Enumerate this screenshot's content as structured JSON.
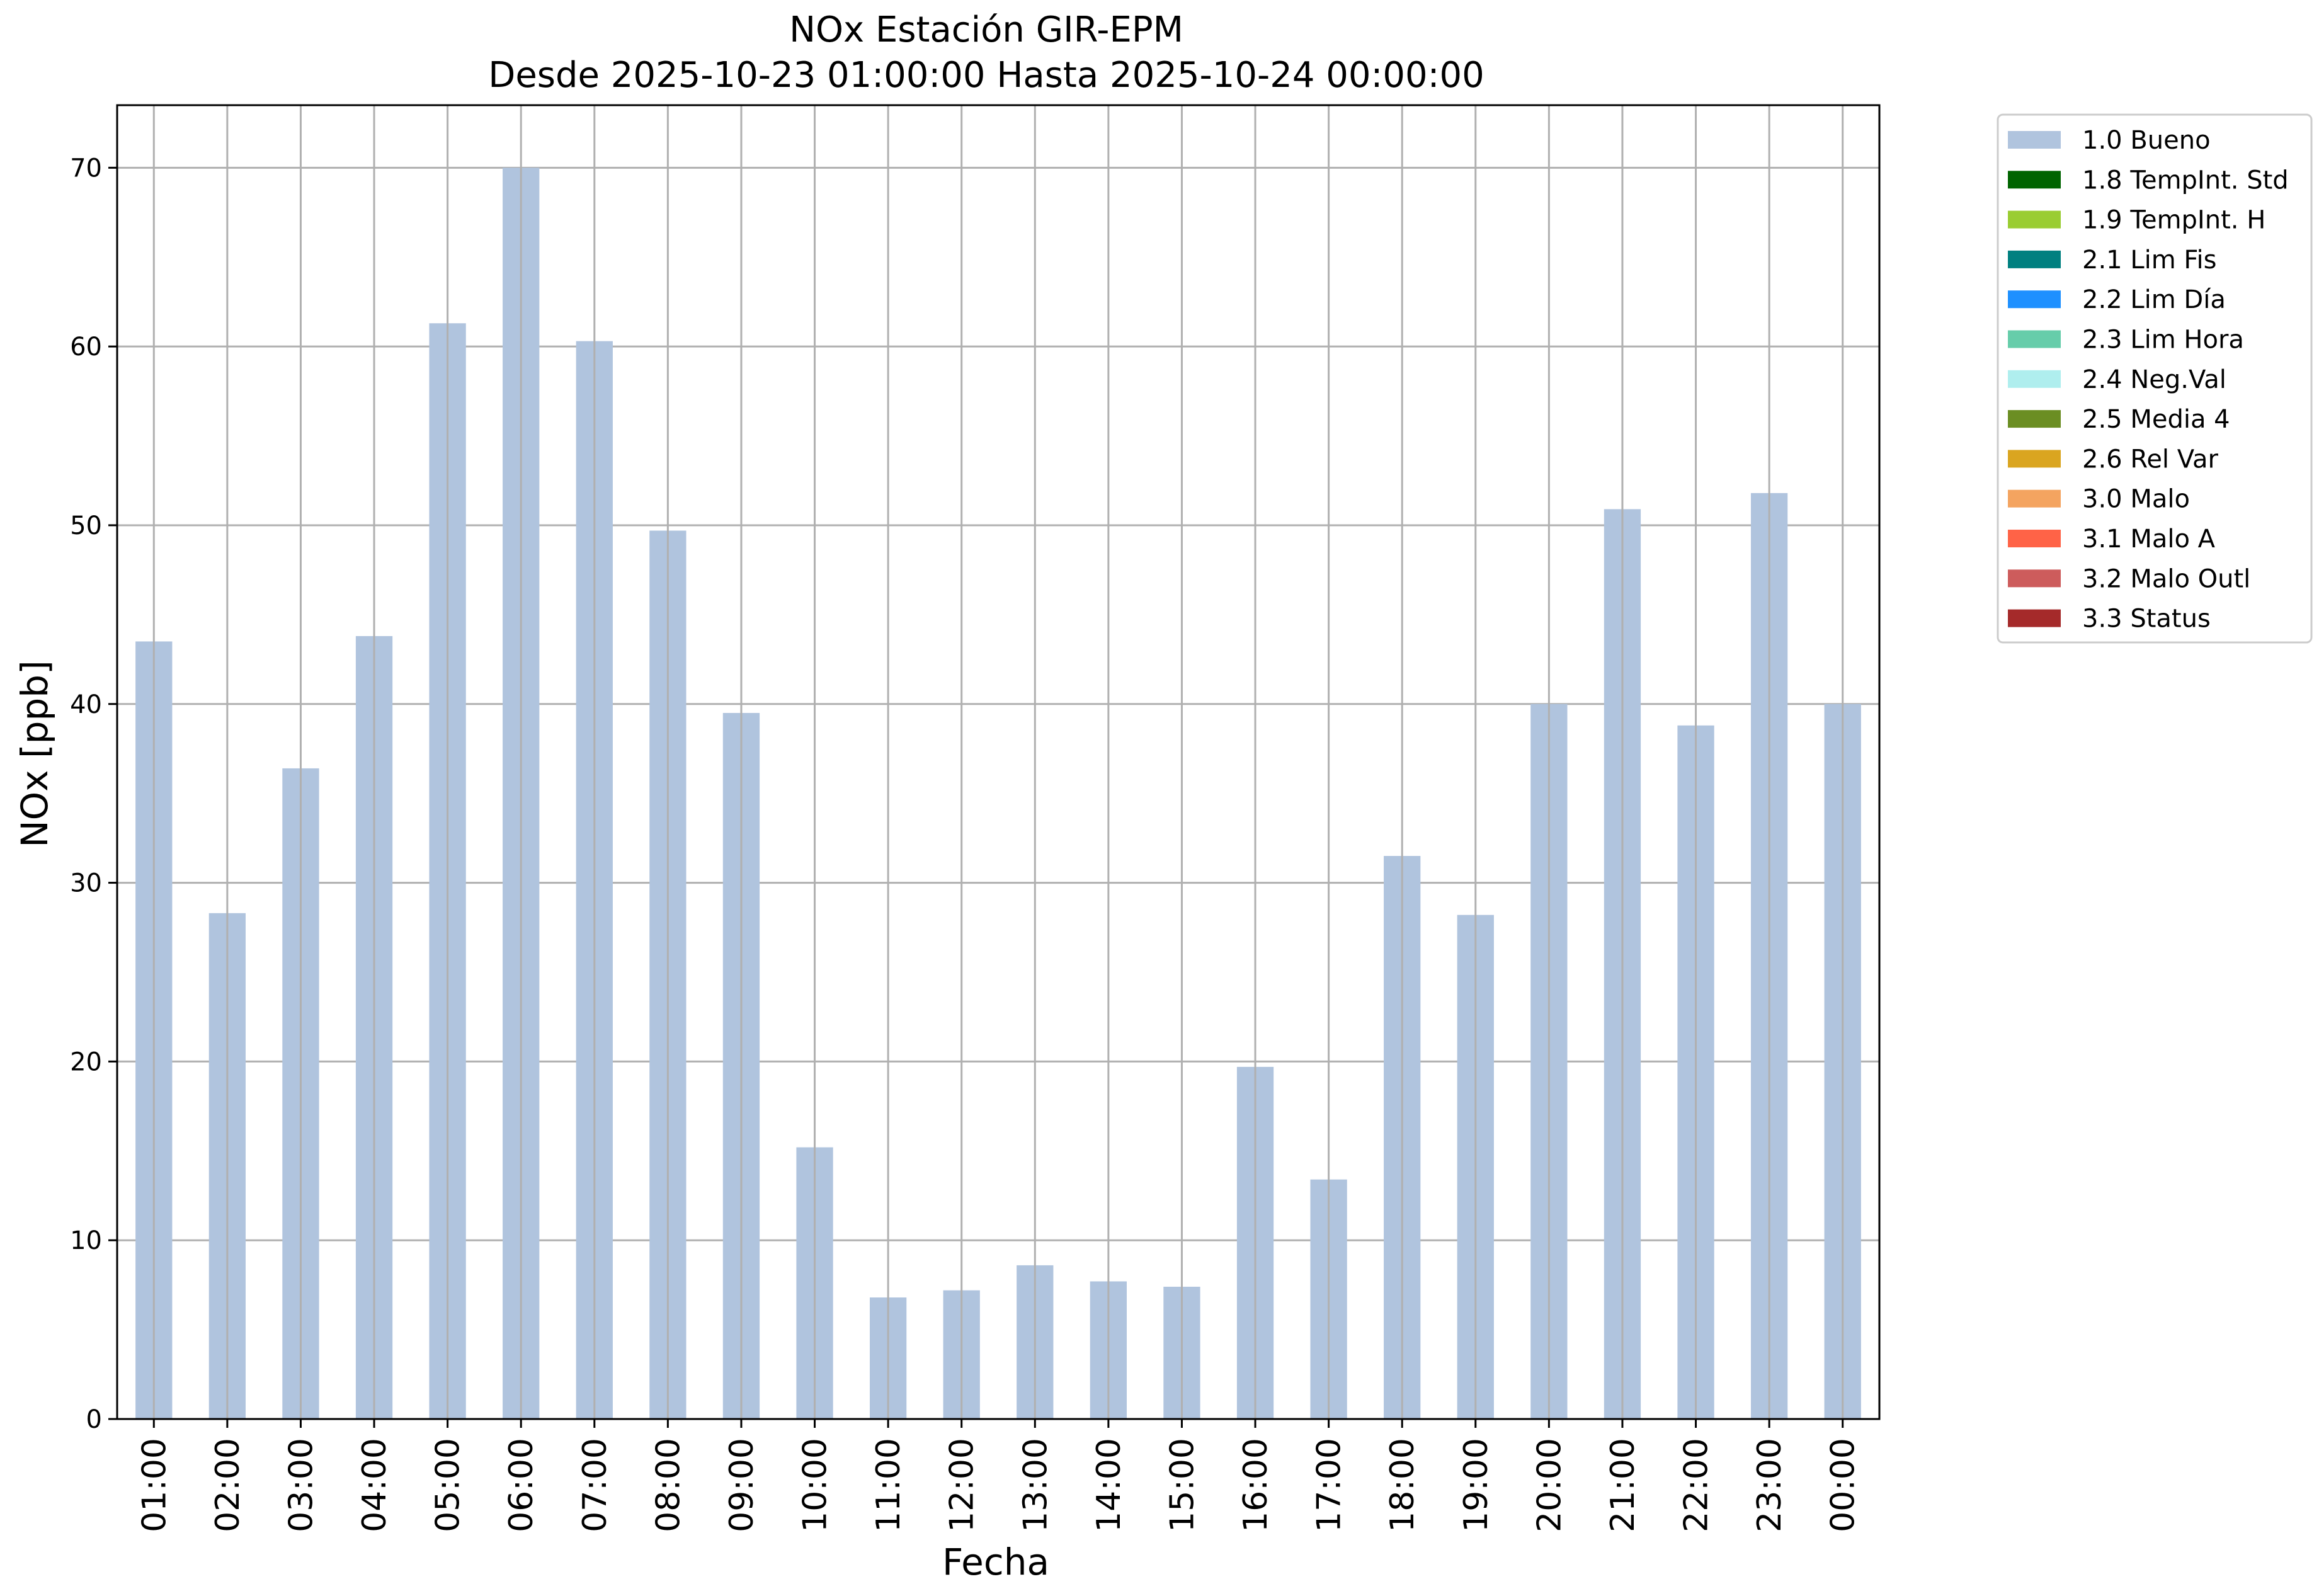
{
  "chart_data": {
    "type": "bar",
    "title_line1": "NOx Estación GIR-EPM",
    "title_line2": "Desde 2025-10-23 01:00:00 Hasta 2025-10-24 00:00:00",
    "xlabel": "Fecha",
    "ylabel": "NOx [ppb]",
    "ylim": [
      0,
      73.5
    ],
    "yticks": [
      0,
      10,
      20,
      30,
      40,
      50,
      60,
      70
    ],
    "grid": true,
    "legend_position": "outside-top-right",
    "categories": [
      "01:00",
      "02:00",
      "03:00",
      "04:00",
      "05:00",
      "06:00",
      "07:00",
      "08:00",
      "09:00",
      "10:00",
      "11:00",
      "12:00",
      "13:00",
      "14:00",
      "15:00",
      "16:00",
      "17:00",
      "18:00",
      "19:00",
      "20:00",
      "21:00",
      "22:00",
      "23:00",
      "00:00"
    ],
    "series": [
      {
        "name": "1.0 Bueno",
        "color": "#b0c4de",
        "values": [
          43.5,
          28.3,
          36.4,
          43.8,
          61.3,
          70.0,
          60.3,
          49.7,
          39.5,
          15.2,
          6.8,
          7.2,
          8.6,
          7.7,
          7.4,
          19.7,
          13.4,
          31.5,
          28.2,
          40.0,
          50.9,
          38.8,
          51.8,
          40.0
        ]
      }
    ],
    "legend": [
      {
        "label": "1.0 Bueno",
        "color": "#b0c4de"
      },
      {
        "label": "1.8 TempInt. Std",
        "color": "#006400"
      },
      {
        "label": "1.9 TempInt. H",
        "color": "#9acd32"
      },
      {
        "label": "2.1 Lim Fis",
        "color": "#008080"
      },
      {
        "label": "2.2 Lim Día",
        "color": "#1e90ff"
      },
      {
        "label": "2.3 Lim Hora",
        "color": "#66cdaa"
      },
      {
        "label": "2.4 Neg.Val",
        "color": "#afeeee"
      },
      {
        "label": "2.5 Media 4",
        "color": "#6b8e23"
      },
      {
        "label": "2.6 Rel Var",
        "color": "#daa520"
      },
      {
        "label": "3.0 Malo",
        "color": "#f4a460"
      },
      {
        "label": "3.1 Malo A",
        "color": "#ff6347"
      },
      {
        "label": "3.2 Malo Outl",
        "color": "#cd5c5c"
      },
      {
        "label": "3.3 Status",
        "color": "#a52a2a"
      }
    ]
  }
}
